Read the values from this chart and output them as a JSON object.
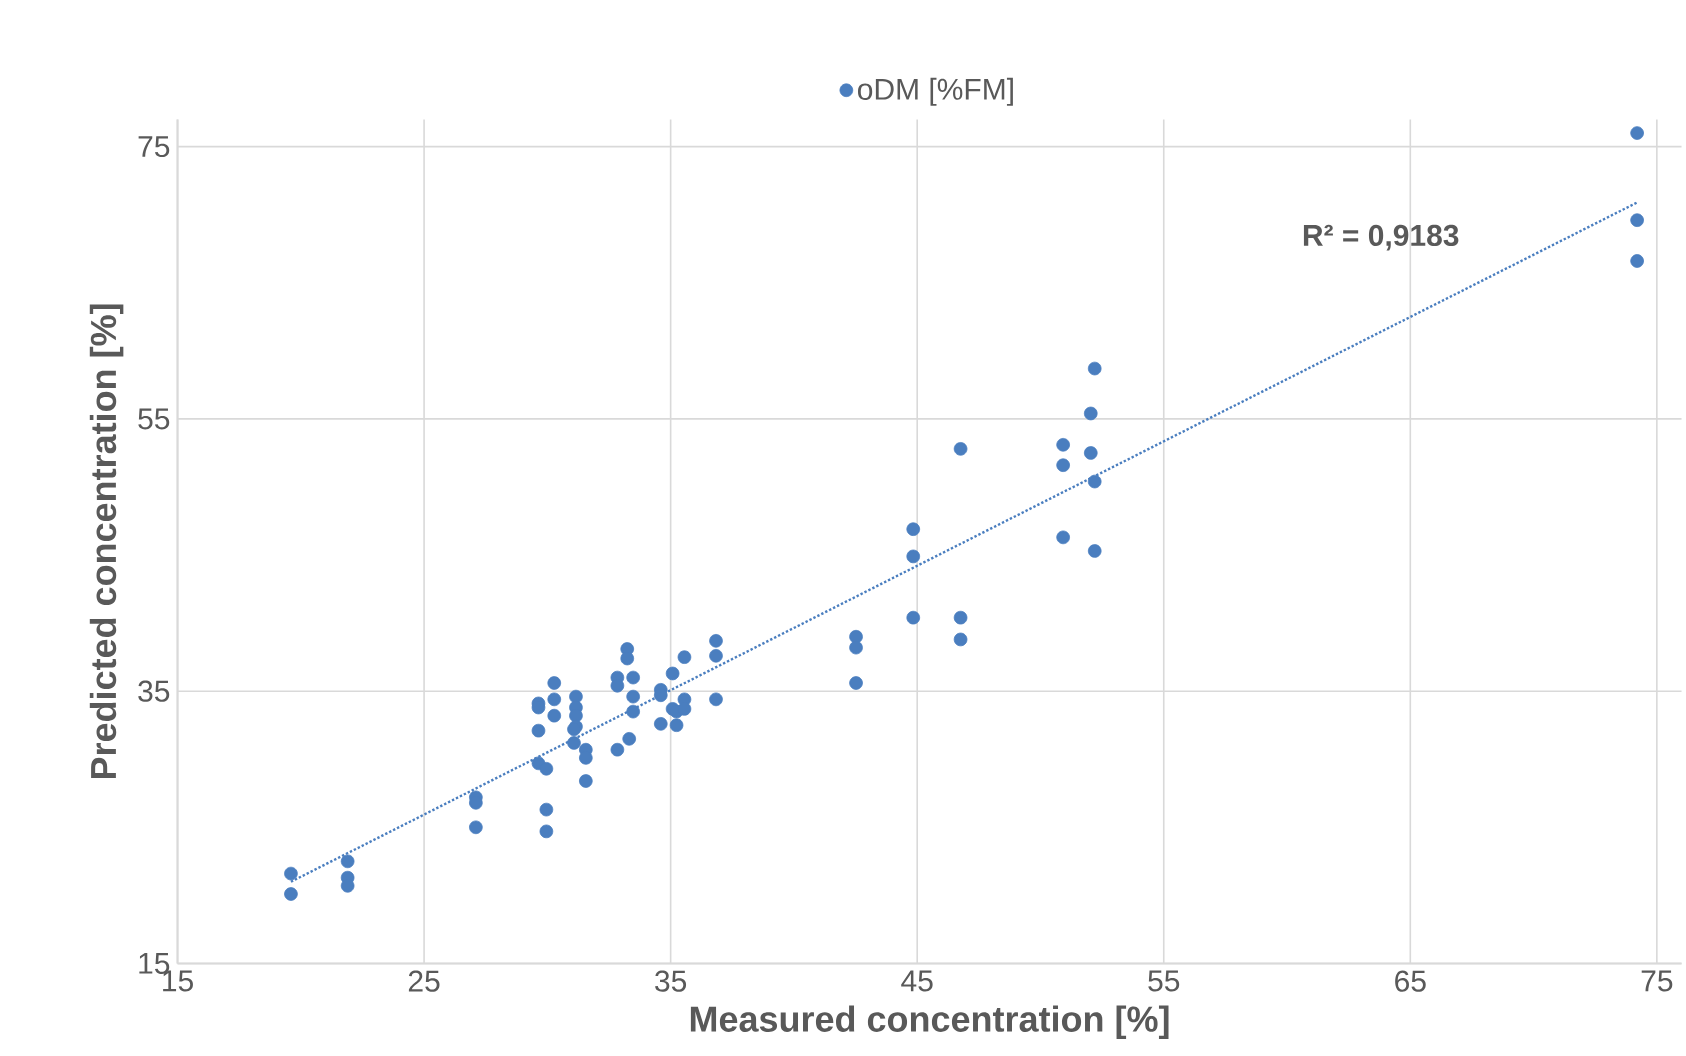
{
  "chart_data": {
    "type": "scatter",
    "xlabel": "Measured concentration [%]",
    "ylabel": "Predicted concentration [%]",
    "xlim": [
      15,
      76
    ],
    "ylim": [
      15,
      77
    ],
    "xticks": [
      15,
      25,
      35,
      45,
      55,
      65,
      75
    ],
    "yticks": [
      15,
      35,
      55,
      75
    ],
    "grid": true,
    "legend": "top",
    "marker": "circle",
    "annotations": [
      "R² = 0,9183"
    ],
    "series": [
      {
        "name": "oDM [%FM]",
        "color": "#4a7ebf",
        "x": [
          19.6,
          19.6,
          21.9,
          21.9,
          21.9,
          27.1,
          27.1,
          27.1,
          29.64,
          29.64,
          30.28,
          30.28,
          30.28,
          29.64,
          29.64,
          29.96,
          29.96,
          29.96,
          31.16,
          31.16,
          31.16,
          31.16,
          31.08,
          31.08,
          31.56,
          31.56,
          31.56,
          32.84,
          32.84,
          33.24,
          33.24,
          33.48,
          33.48,
          33.48,
          32.84,
          33.32,
          34.6,
          34.6,
          35.08,
          35.56,
          35.08,
          35.24,
          35.56,
          35.56,
          34.6,
          35.24,
          36.84,
          36.84,
          36.84,
          42.52,
          42.52,
          42.52,
          44.84,
          44.84,
          44.84,
          46.76,
          46.76,
          46.76,
          50.92,
          50.92,
          50.92,
          52.04,
          52.2,
          52.04,
          52.2,
          52.2,
          74.2,
          74.2,
          74.2
        ],
        "values": [
          21.6,
          20.1,
          22.5,
          21.3,
          20.7,
          27.2,
          26.8,
          25.0,
          34.1,
          33.8,
          35.6,
          34.4,
          33.2,
          32.1,
          29.7,
          29.3,
          26.3,
          24.7,
          34.6,
          33.8,
          33.2,
          32.4,
          32.2,
          31.2,
          30.7,
          30.1,
          28.4,
          36.0,
          35.4,
          38.1,
          37.4,
          36.0,
          34.6,
          33.5,
          30.7,
          31.5,
          35.1,
          34.7,
          36.3,
          37.5,
          33.7,
          33.5,
          34.4,
          33.7,
          32.6,
          32.5,
          38.7,
          37.6,
          34.4,
          39.0,
          38.2,
          35.6,
          46.9,
          44.9,
          40.4,
          52.8,
          40.4,
          38.8,
          53.1,
          51.6,
          46.3,
          55.4,
          58.7,
          52.5,
          50.4,
          45.3,
          76.0,
          69.6,
          66.6
        ]
      },
      {
        "type": "line",
        "color": "#4a7ebf",
        "line_style": "dotted",
        "marker": "none",
        "x": [
          19.6,
          74.2
        ],
        "values": [
          21.0,
          70.9
        ]
      }
    ]
  }
}
